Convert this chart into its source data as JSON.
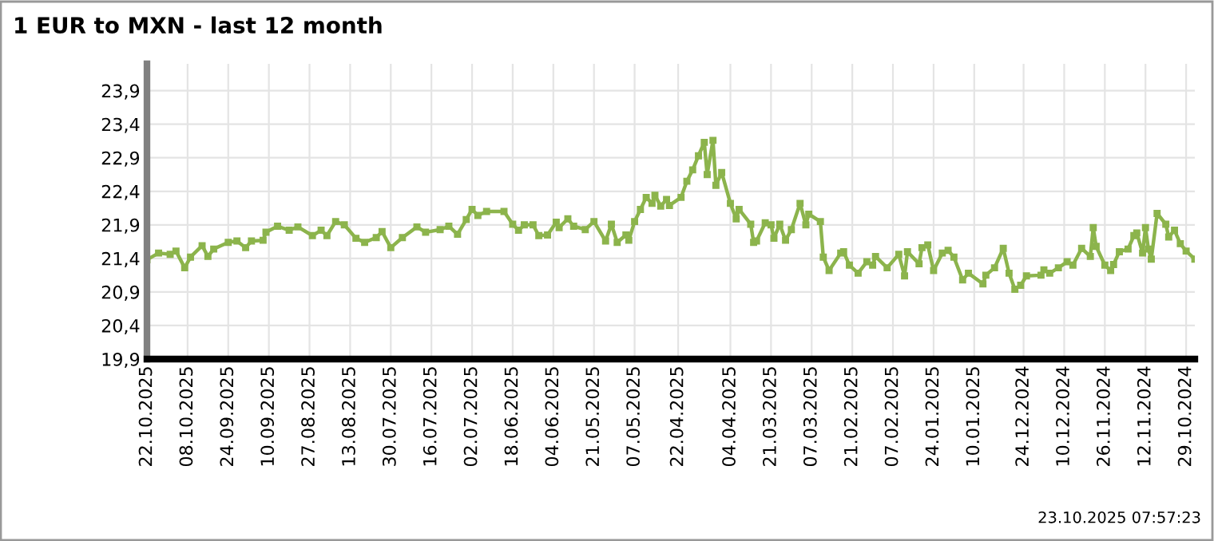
{
  "chart_data": {
    "type": "line",
    "title": "1 EUR to MXN - last 12 month",
    "annotations": [
      "23.10.2025 07:57:23"
    ],
    "x": [
      "2025-10-22",
      "2025-10-18",
      "2025-10-14",
      "2025-10-12",
      "2025-10-09",
      "2025-10-07",
      "2025-10-03",
      "2025-10-01",
      "2025-09-29",
      "2025-09-24",
      "2025-09-21",
      "2025-09-18",
      "2025-09-16",
      "2025-09-12",
      "2025-09-11",
      "2025-09-07",
      "2025-09-03",
      "2025-08-31",
      "2025-08-26",
      "2025-08-23",
      "2025-08-21",
      "2025-08-18",
      "2025-08-15",
      "2025-08-11",
      "2025-08-08",
      "2025-08-04",
      "2025-08-02",
      "2025-07-30",
      "2025-07-26",
      "2025-07-21",
      "2025-07-18",
      "2025-07-13",
      "2025-07-10",
      "2025-07-07",
      "2025-07-04",
      "2025-07-02",
      "2025-06-30",
      "2025-06-27",
      "2025-06-21",
      "2025-06-18",
      "2025-06-16",
      "2025-06-14",
      "2025-06-11",
      "2025-06-09",
      "2025-06-06",
      "2025-06-03",
      "2025-06-02",
      "2025-05-30",
      "2025-05-28",
      "2025-05-24",
      "2025-05-21",
      "2025-05-17",
      "2025-05-15",
      "2025-05-13",
      "2025-05-10",
      "2025-05-09",
      "2025-05-07",
      "2025-05-05",
      "2025-05-03",
      "2025-05-01",
      "2025-04-30",
      "2025-04-28",
      "2025-04-26",
      "2025-04-25",
      "2025-04-21",
      "2025-04-19",
      "2025-04-17",
      "2025-04-15",
      "2025-04-13",
      "2025-04-12",
      "2025-04-10",
      "2025-04-09",
      "2025-04-07",
      "2025-04-04",
      "2025-04-02",
      "2025-04-01",
      "2025-03-28",
      "2025-03-27",
      "2025-03-26",
      "2025-03-23",
      "2025-03-21",
      "2025-03-20",
      "2025-03-18",
      "2025-03-16",
      "2025-03-14",
      "2025-03-11",
      "2025-03-09",
      "2025-03-08",
      "2025-03-04",
      "2025-03-03",
      "2025-03-01",
      "2025-02-25",
      "2025-02-24",
      "2025-02-22",
      "2025-02-19",
      "2025-02-16",
      "2025-02-14",
      "2025-02-13",
      "2025-02-09",
      "2025-02-05",
      "2025-02-03",
      "2025-02-02",
      "2025-01-29",
      "2025-01-28",
      "2025-01-26",
      "2025-01-24",
      "2025-01-21",
      "2025-01-19",
      "2025-01-17",
      "2025-01-14",
      "2025-01-12",
      "2025-01-07",
      "2025-01-06",
      "2025-01-03",
      "2024-12-31",
      "2024-12-29",
      "2024-12-27",
      "2024-12-25",
      "2024-12-23",
      "2024-12-18",
      "2024-12-17",
      "2024-12-15",
      "2024-12-12",
      "2024-12-09",
      "2024-12-07",
      "2024-12-04",
      "2024-12-01",
      "2024-11-30",
      "2024-11-29",
      "2024-11-26",
      "2024-11-24",
      "2024-11-23",
      "2024-11-21",
      "2024-11-18",
      "2024-11-16",
      "2024-11-15",
      "2024-11-13",
      "2024-11-12",
      "2024-11-11",
      "2024-11-10",
      "2024-11-08",
      "2024-11-05",
      "2024-11-04",
      "2024-11-02",
      "2024-10-31",
      "2024-10-29",
      "2024-10-26"
    ],
    "series": [
      {
        "color": "#8cb44c",
        "values": [
          21.38,
          21.48,
          21.46,
          21.51,
          21.26,
          21.42,
          21.59,
          21.43,
          21.54,
          21.64,
          21.66,
          21.56,
          21.66,
          21.67,
          21.79,
          21.88,
          21.82,
          21.87,
          21.74,
          21.82,
          21.74,
          21.95,
          21.9,
          21.7,
          21.64,
          21.71,
          21.8,
          21.56,
          21.71,
          21.87,
          21.79,
          21.83,
          21.88,
          21.76,
          21.98,
          22.13,
          22.04,
          22.1,
          22.1,
          21.91,
          21.82,
          21.9,
          21.9,
          21.74,
          21.75,
          21.94,
          21.86,
          21.99,
          21.88,
          21.83,
          21.95,
          21.66,
          21.91,
          21.64,
          21.75,
          21.67,
          21.95,
          22.13,
          22.31,
          22.22,
          22.34,
          22.18,
          22.28,
          22.19,
          22.31,
          22.55,
          22.72,
          22.93,
          23.13,
          22.65,
          23.16,
          22.49,
          22.68,
          22.22,
          21.99,
          22.13,
          21.91,
          21.64,
          21.66,
          21.93,
          21.9,
          21.7,
          21.91,
          21.67,
          21.83,
          22.22,
          21.9,
          22.06,
          21.95,
          21.42,
          21.22,
          21.48,
          21.5,
          21.3,
          21.18,
          21.35,
          21.3,
          21.43,
          21.26,
          21.46,
          21.14,
          21.5,
          21.32,
          21.56,
          21.6,
          21.22,
          21.48,
          21.52,
          21.42,
          21.08,
          21.18,
          21.02,
          21.15,
          21.26,
          21.55,
          21.18,
          20.94,
          21.0,
          21.14,
          21.15,
          21.23,
          21.18,
          21.26,
          21.35,
          21.3,
          21.55,
          21.43,
          21.86,
          21.58,
          21.3,
          21.22,
          21.31,
          21.5,
          21.54,
          21.74,
          21.78,
          21.48,
          21.86,
          21.54,
          21.39,
          22.07,
          21.91,
          21.72,
          21.82,
          21.62,
          21.51,
          21.39
        ]
      }
    ],
    "xlim": [
      "2025-10-22",
      "2024-10-26"
    ],
    "xticks": [
      {
        "value": "2025-10-22",
        "label": "22.10.2025"
      },
      {
        "value": "2025-10-08",
        "label": "08.10.2025"
      },
      {
        "value": "2025-09-24",
        "label": "24.09.2025"
      },
      {
        "value": "2025-09-10",
        "label": "10.09.2025"
      },
      {
        "value": "2025-08-27",
        "label": "27.08.2025"
      },
      {
        "value": "2025-08-13",
        "label": "13.08.2025"
      },
      {
        "value": "2025-07-30",
        "label": "30.07.2025"
      },
      {
        "value": "2025-07-16",
        "label": "16.07.2025"
      },
      {
        "value": "2025-07-02",
        "label": "02.07.2025"
      },
      {
        "value": "2025-06-18",
        "label": "18.06.2025"
      },
      {
        "value": "2025-06-04",
        "label": "04.06.2025"
      },
      {
        "value": "2025-05-21",
        "label": "21.05.2025"
      },
      {
        "value": "2025-05-07",
        "label": "07.05.2025"
      },
      {
        "value": "2025-04-22",
        "label": "22.04.2025"
      },
      {
        "value": "2025-04-04",
        "label": "04.04.2025"
      },
      {
        "value": "2025-03-21",
        "label": "21.03.2025"
      },
      {
        "value": "2025-03-07",
        "label": "07.03.2025"
      },
      {
        "value": "2025-02-21",
        "label": "21.02.2025"
      },
      {
        "value": "2025-02-07",
        "label": "07.02.2025"
      },
      {
        "value": "2025-01-24",
        "label": "24.01.2025"
      },
      {
        "value": "2025-01-10",
        "label": "10.01.2025"
      },
      {
        "value": "2024-12-24",
        "label": "24.12.2024"
      },
      {
        "value": "2024-12-10",
        "label": "10.12.2024"
      },
      {
        "value": "2024-11-26",
        "label": "26.11.2024"
      },
      {
        "value": "2024-11-12",
        "label": "12.11.2024"
      },
      {
        "value": "2024-10-29",
        "label": "29.10.2024"
      }
    ],
    "ylim": [
      19.9,
      24.3
    ],
    "yticks": [
      {
        "value": 19.9,
        "label": "19,9"
      },
      {
        "value": 20.4,
        "label": "20,4"
      },
      {
        "value": 20.9,
        "label": "20,9"
      },
      {
        "value": 21.4,
        "label": "21,4"
      },
      {
        "value": 21.9,
        "label": "21,9"
      },
      {
        "value": 22.4,
        "label": "22,4"
      },
      {
        "value": 22.9,
        "label": "22,9"
      },
      {
        "value": 23.4,
        "label": "23,4"
      },
      {
        "value": 23.9,
        "label": "23,9"
      }
    ],
    "grid": true,
    "marker": "square",
    "line_style": "solid"
  }
}
